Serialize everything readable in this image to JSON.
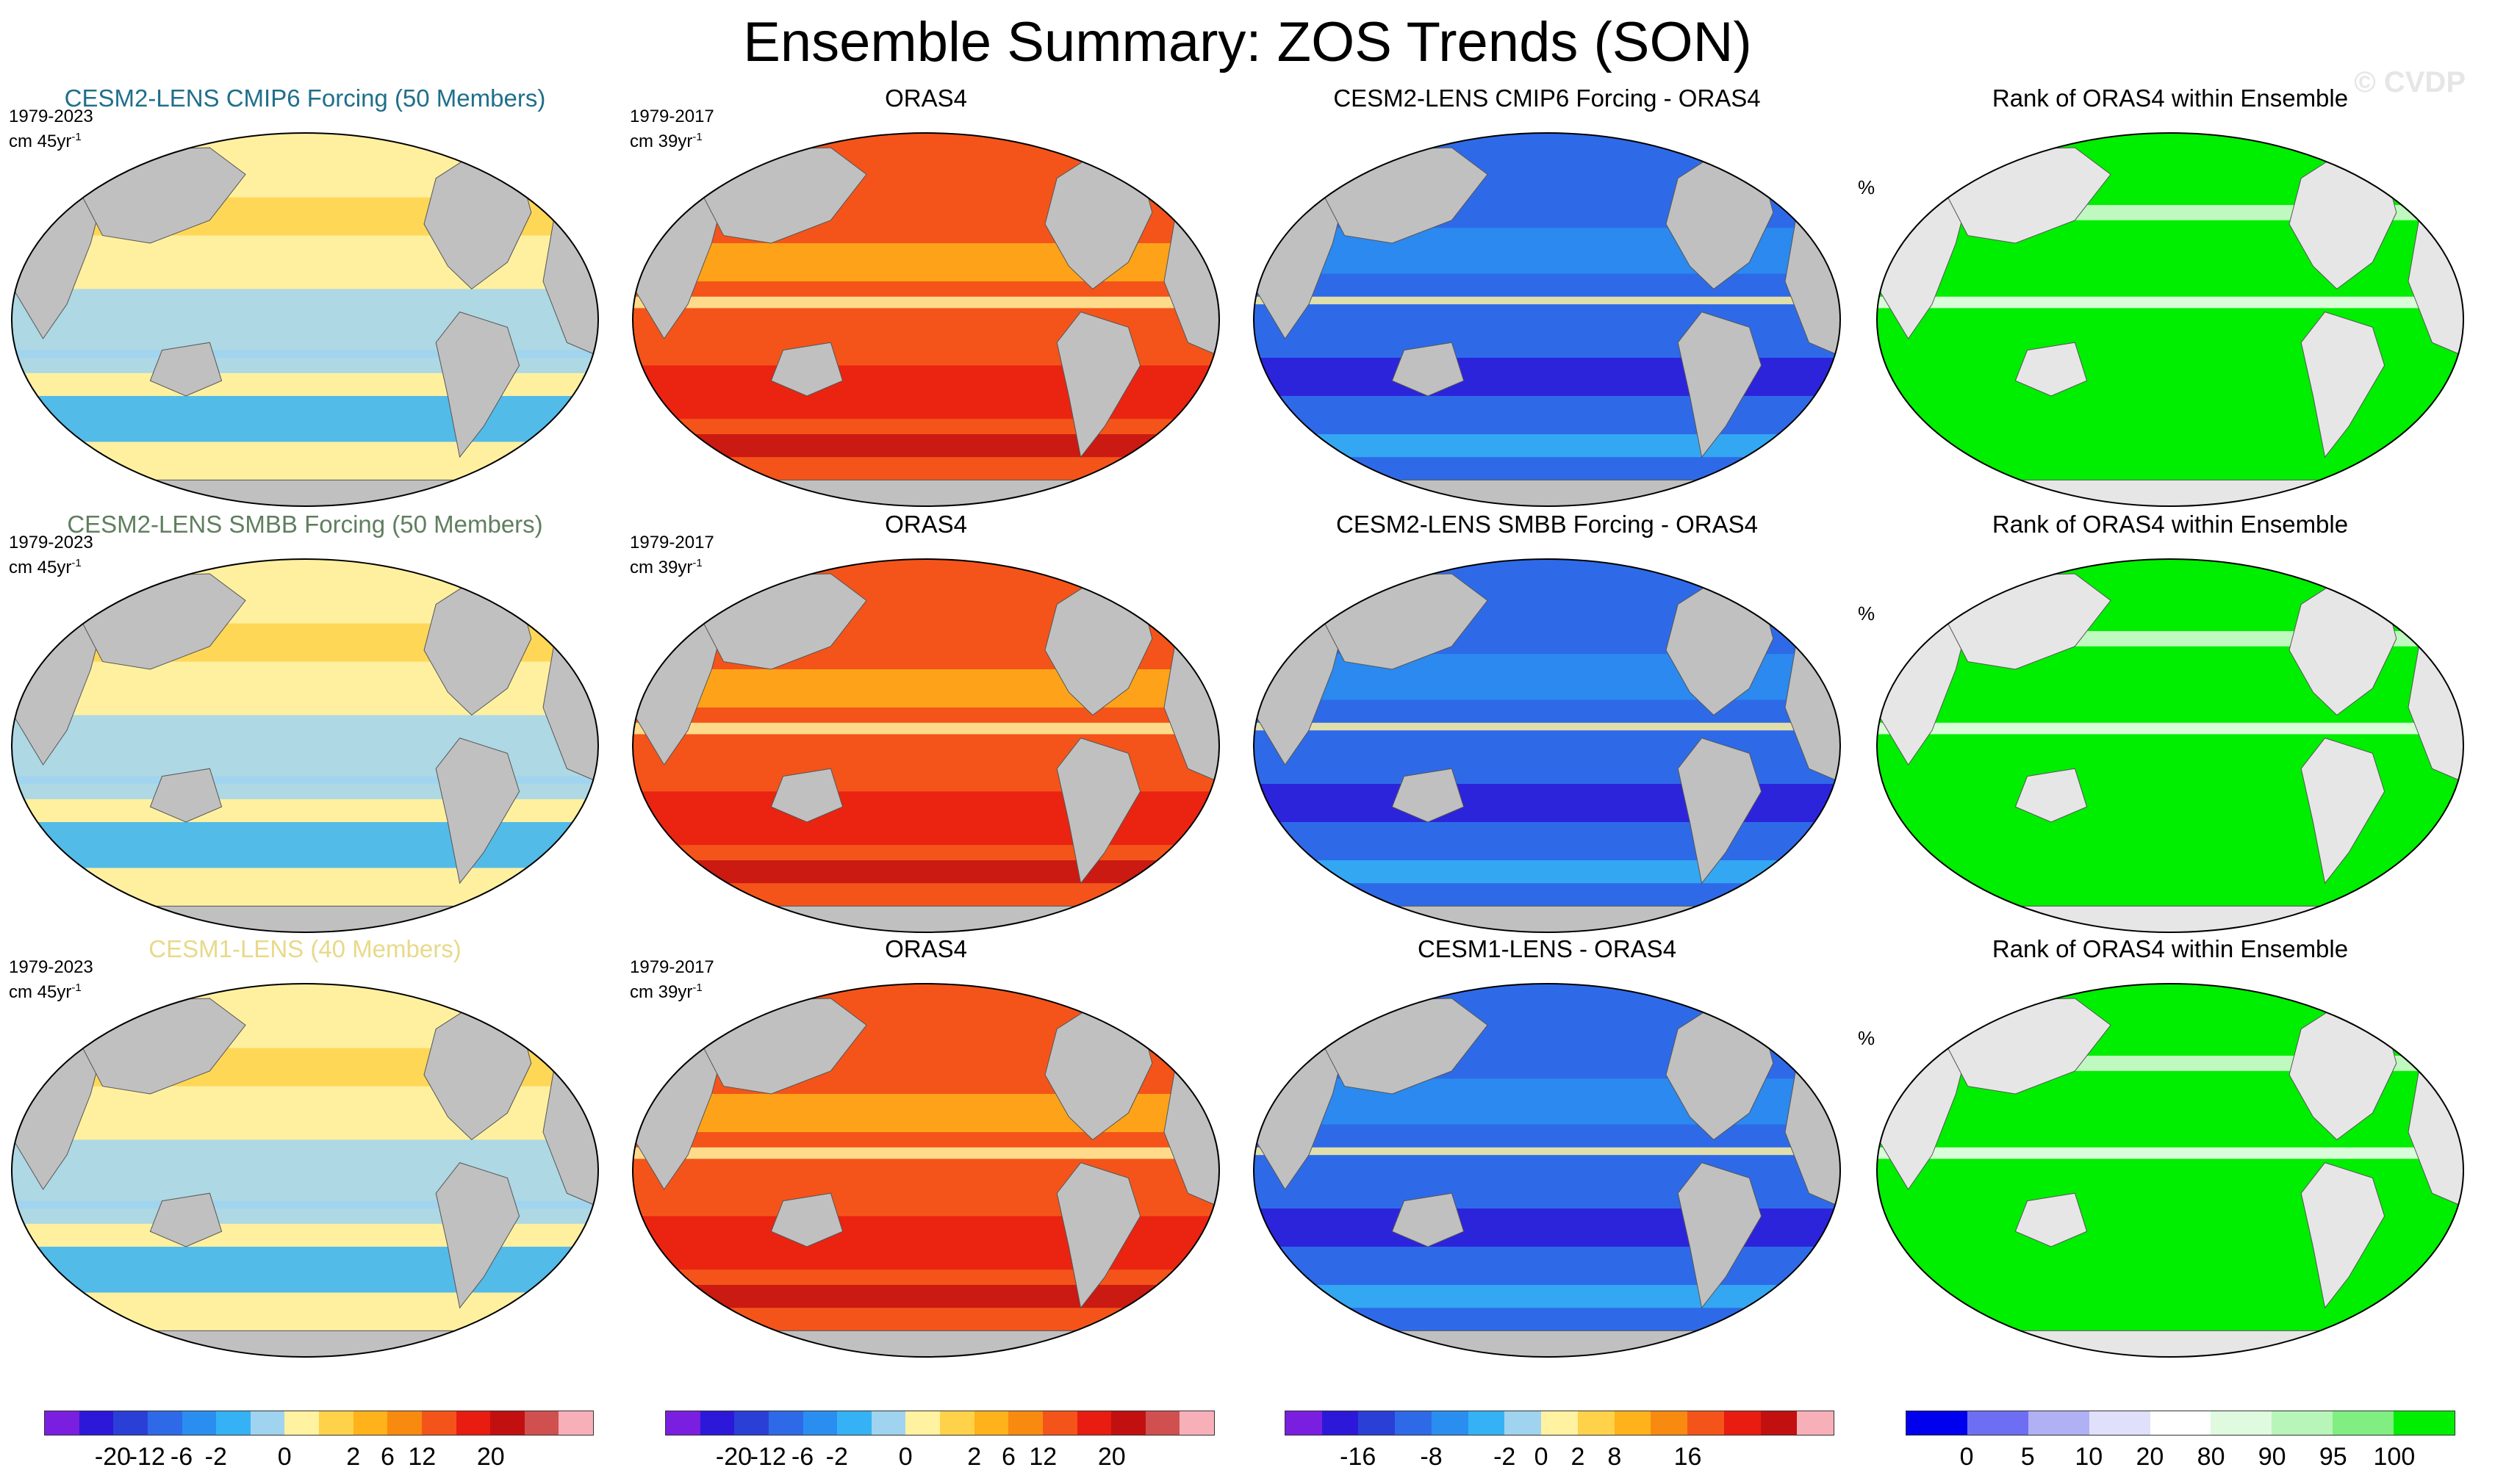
{
  "figure": {
    "title": "Ensemble Summary: ZOS Trends (SON)",
    "watermark": "© CVDP"
  },
  "rows": [
    {
      "ensemble_title": "CESM2-LENS CMIP6 Forcing (50 Members)",
      "ensemble_title_color": "#1f6f8b",
      "ensemble_period": "1979-2023",
      "ensemble_units": "cm 45yr",
      "obs_title": "ORAS4",
      "obs_period": "1979-2017",
      "obs_units": "cm 39yr",
      "diff_title": "CESM2-LENS CMIP6 Forcing - ORAS4",
      "rank_title": "Rank of ORAS4 within Ensemble",
      "rank_units": "%"
    },
    {
      "ensemble_title": "CESM2-LENS SMBB Forcing (50 Members)",
      "ensemble_title_color": "#5f7f5f",
      "ensemble_period": "1979-2023",
      "ensemble_units": "cm 45yr",
      "obs_title": "ORAS4",
      "obs_period": "1979-2017",
      "obs_units": "cm 39yr",
      "diff_title": "CESM2-LENS SMBB Forcing - ORAS4",
      "rank_title": "Rank of ORAS4 within Ensemble",
      "rank_units": "%"
    },
    {
      "ensemble_title": "CESM1-LENS (40 Members)",
      "ensemble_title_color": "#e8d98a",
      "ensemble_period": "1979-2023",
      "ensemble_units": "cm 45yr",
      "obs_title": "ORAS4",
      "obs_period": "1979-2017",
      "obs_units": "cm 39yr",
      "diff_title": "CESM1-LENS - ORAS4",
      "rank_title": "Rank of ORAS4 within Ensemble",
      "rank_units": "%"
    }
  ],
  "units_exponent": "-1",
  "colorbars": {
    "trend": {
      "colors": [
        "#7a1fe0",
        "#2c18d8",
        "#2a3fd6",
        "#2e6ae8",
        "#2a8ef0",
        "#35b2f5",
        "#9fd3f0",
        "#fff2a0",
        "#ffd24a",
        "#ffb21a",
        "#f88a10",
        "#f4541a",
        "#e81c10",
        "#c21010",
        "#d05050",
        "#f8b0b8"
      ],
      "ticks": [
        "-20",
        "-12",
        "-6",
        "-2",
        "0",
        "2",
        "6",
        "12",
        "20"
      ]
    },
    "diff": {
      "colors": [
        "#7a1fe0",
        "#2c18d8",
        "#2a3fd6",
        "#2e6ae8",
        "#2a8ef0",
        "#35b2f5",
        "#9fd3f0",
        "#fff2a0",
        "#ffd24a",
        "#ffb21a",
        "#f88a10",
        "#f4541a",
        "#e81c10",
        "#c21010",
        "#f8b0b8"
      ],
      "ticks": [
        "-16",
        "-8",
        "-2",
        "0",
        "2",
        "8",
        "16"
      ]
    },
    "rank": {
      "colors": [
        "#0000ee",
        "#6e6ef5",
        "#b0b0f5",
        "#e0e0fa",
        "#ffffff",
        "#e0fae0",
        "#b8f5b8",
        "#80ee80",
        "#00ee00"
      ],
      "ticks": [
        "0",
        "5",
        "10",
        "20",
        "80",
        "90",
        "95",
        "100"
      ]
    }
  },
  "map_palette": {
    "land": "#c0c0c0",
    "ensemble_ocean": "#fff0a0",
    "obs_ocean": "#f4541a",
    "diff_ocean": "#2e6ae8",
    "rank_ocean": "#00ee00",
    "rank_land": "#e6e6e6"
  }
}
